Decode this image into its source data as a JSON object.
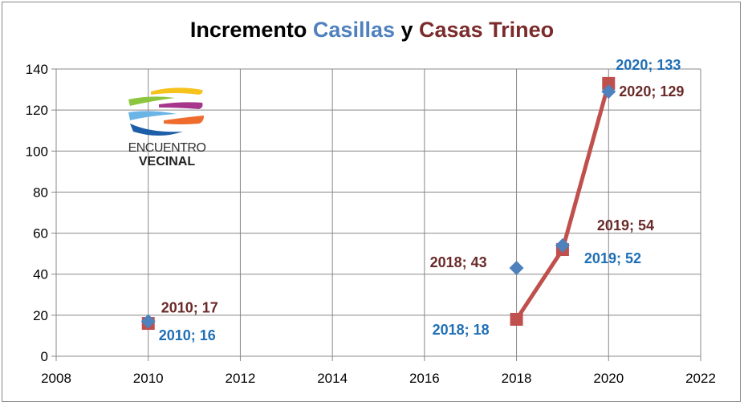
{
  "chart_data": {
    "type": "line",
    "title_parts": [
      {
        "text": "Incremento ",
        "color": "#000000"
      },
      {
        "text": "Casillas",
        "color": "#4f81bd"
      },
      {
        "text": " y ",
        "color": "#000000"
      },
      {
        "text": "Casas Trineo",
        "color": "#7b2b2b"
      }
    ],
    "xlim": [
      2008,
      2022
    ],
    "ylim": [
      0,
      140
    ],
    "x_ticks": [
      2008,
      2010,
      2012,
      2014,
      2016,
      2018,
      2020,
      2022
    ],
    "y_ticks": [
      0,
      20,
      40,
      60,
      80,
      100,
      120,
      140
    ],
    "grid": true,
    "series": [
      {
        "marker": "square",
        "color": "#c0504d",
        "label_color": "#1f6fb5",
        "line_from_index": 1,
        "points": [
          {
            "x": 2010,
            "y": 16,
            "label": "2010; 16"
          },
          {
            "x": 2018,
            "y": 18,
            "label": "2018; 18"
          },
          {
            "x": 2019,
            "y": 52,
            "label": "2019; 52"
          },
          {
            "x": 2020,
            "y": 133,
            "label": "2020; 133"
          }
        ]
      },
      {
        "marker": "diamond",
        "color": "#4f81bd",
        "label_color": "#6b2a2a",
        "points": [
          {
            "x": 2010,
            "y": 17,
            "label": "2010; 17"
          },
          {
            "x": 2018,
            "y": 43,
            "label": "2018; 43"
          },
          {
            "x": 2019,
            "y": 54,
            "label": "2019; 54"
          },
          {
            "x": 2020,
            "y": 129,
            "label": "2020; 129"
          }
        ]
      }
    ]
  },
  "logo": {
    "line1": "ENCUENTRO",
    "line2": "VECINAL"
  }
}
